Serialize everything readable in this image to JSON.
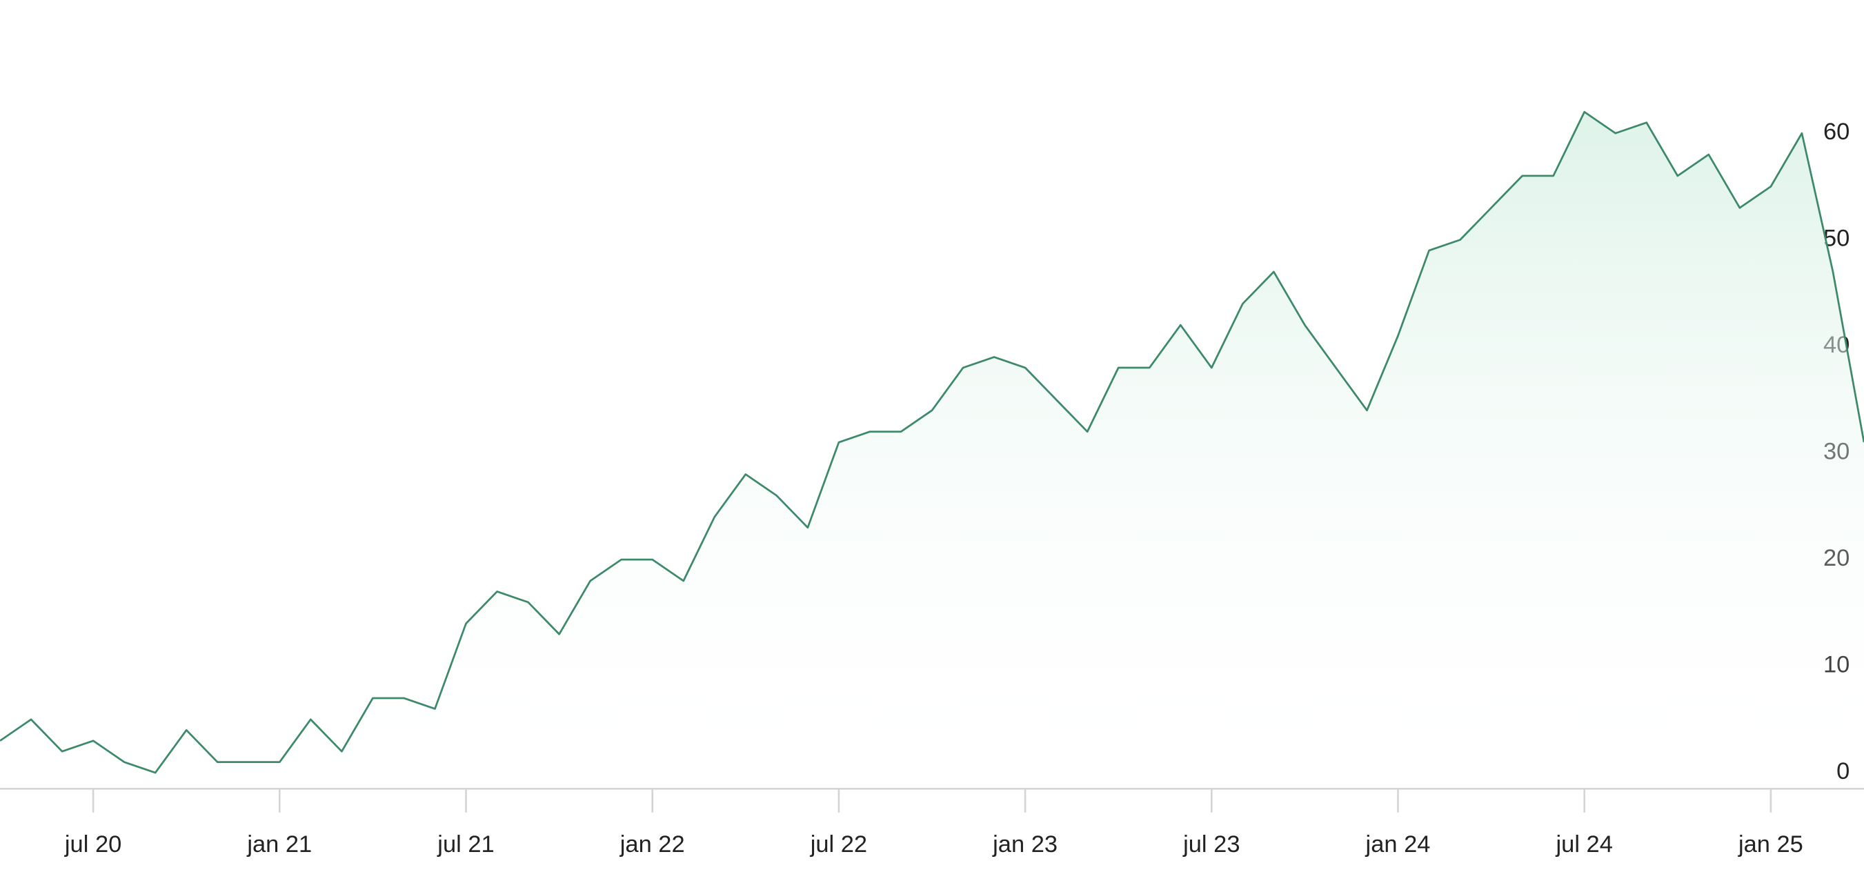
{
  "chart_data": {
    "type": "area",
    "color": "#3d8a6b",
    "x": [
      "2020-04",
      "2020-05",
      "2020-06",
      "2020-07",
      "2020-08",
      "2020-09",
      "2020-10",
      "2020-11",
      "2020-12",
      "2021-01",
      "2021-02",
      "2021-03",
      "2021-04",
      "2021-05",
      "2021-06",
      "2021-07",
      "2021-08",
      "2021-09",
      "2021-10",
      "2021-11",
      "2021-12",
      "2022-01",
      "2022-02",
      "2022-03",
      "2022-04",
      "2022-05",
      "2022-06",
      "2022-07",
      "2022-08",
      "2022-09",
      "2022-10",
      "2022-11",
      "2022-12",
      "2023-01",
      "2023-02",
      "2023-03",
      "2023-04",
      "2023-05",
      "2023-06",
      "2023-07",
      "2023-08",
      "2023-09",
      "2023-10",
      "2023-11",
      "2023-12",
      "2024-01",
      "2024-02",
      "2024-03",
      "2024-04",
      "2024-05",
      "2024-06",
      "2024-07",
      "2024-08",
      "2024-09",
      "2024-10",
      "2024-11",
      "2024-12",
      "2025-01",
      "2025-02",
      "2025-03",
      "2025-04"
    ],
    "values": [
      3,
      5,
      2,
      3,
      1,
      0,
      4,
      1,
      1,
      1,
      5,
      2,
      7,
      7,
      6,
      14,
      17,
      16,
      13,
      18,
      20,
      20,
      18,
      24,
      28,
      26,
      23,
      31,
      32,
      32,
      34,
      38,
      39,
      38,
      35,
      32,
      38,
      38,
      42,
      38,
      44,
      47,
      42,
      38,
      34,
      41,
      49,
      50,
      53,
      56,
      56,
      62,
      60,
      61,
      56,
      58,
      53,
      55,
      60,
      47,
      31
    ],
    "xlim": [
      "2020-04",
      "2025-04"
    ],
    "xticks": [
      {
        "value": "2020-07",
        "label": "jul 20"
      },
      {
        "value": "2021-01",
        "label": "jan 21"
      },
      {
        "value": "2021-07",
        "label": "jul 21"
      },
      {
        "value": "2022-01",
        "label": "jan 22"
      },
      {
        "value": "2022-07",
        "label": "jul 22"
      },
      {
        "value": "2023-01",
        "label": "jan 23"
      },
      {
        "value": "2023-07",
        "label": "jul 23"
      },
      {
        "value": "2024-01",
        "label": "jan 24"
      },
      {
        "value": "2024-07",
        "label": "jul 24"
      },
      {
        "value": "2025-01",
        "label": "jan 25"
      }
    ],
    "ylim": [
      -1.5,
      72.5
    ],
    "yticks": [
      0,
      10,
      20,
      30,
      40,
      50,
      60
    ]
  }
}
